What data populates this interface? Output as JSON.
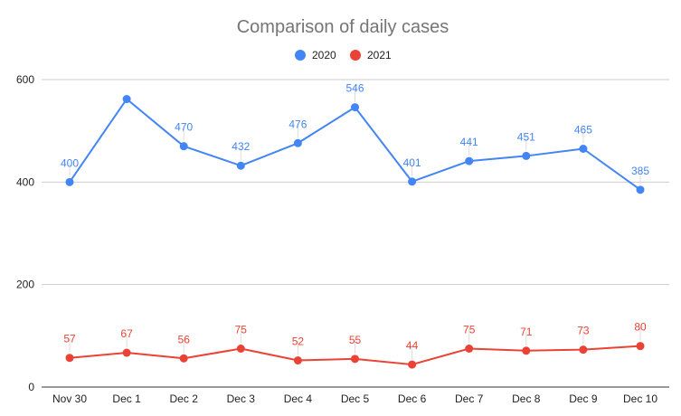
{
  "chart_data": {
    "type": "line",
    "title": "Comparison of daily cases",
    "xlabel": "",
    "ylabel": "",
    "categories": [
      "Nov 30",
      "Dec 1",
      "Dec 2",
      "Dec 3",
      "Dec 4",
      "Dec 5",
      "Dec 6",
      "Dec 7",
      "Dec 8",
      "Dec 9",
      "Dec 10"
    ],
    "ylim": [
      0,
      600
    ],
    "yticks": [
      0,
      200,
      400,
      600
    ],
    "grid": true,
    "legend_position": "top-center",
    "series": [
      {
        "name": "2020",
        "color": "#4285f4",
        "values": [
          400,
          562,
          470,
          432,
          476,
          546,
          401,
          441,
          451,
          465,
          385
        ],
        "labels": [
          "400",
          "",
          "470",
          "432",
          "476",
          "546",
          "401",
          "441",
          "451",
          "465",
          "385"
        ]
      },
      {
        "name": "2021",
        "color": "#ea4335",
        "values": [
          57,
          67,
          56,
          75,
          52,
          55,
          44,
          75,
          71,
          73,
          80
        ],
        "labels": [
          "57",
          "67",
          "56",
          "75",
          "52",
          "55",
          "44",
          "75",
          "71",
          "73",
          "80"
        ]
      }
    ]
  }
}
